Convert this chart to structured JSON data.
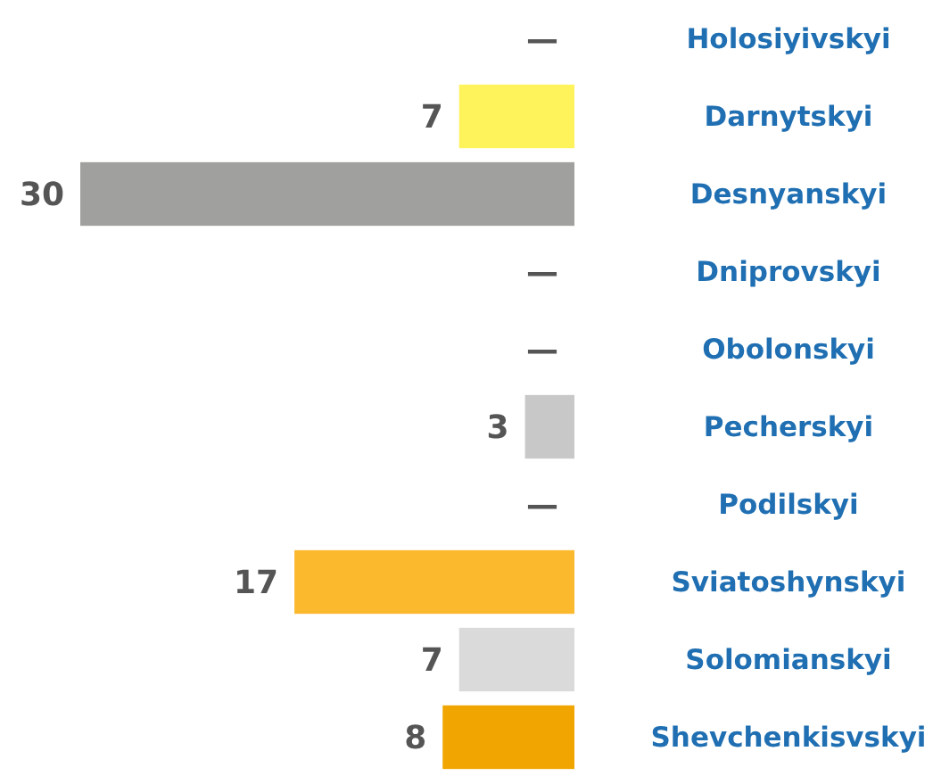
{
  "chart_data": {
    "type": "bar",
    "orientation": "horizontal",
    "categories": [
      "Holosiyivskyi",
      "Darnytskyi",
      "Desnyanskyi",
      "Dniprovskyi",
      "Obolonskyi",
      "Pecherskyi",
      "Podilskyi",
      "Sviatoshynskyi",
      "Solomianskyi",
      "Shevchenkisvskyi"
    ],
    "values": [
      0,
      7,
      30,
      0,
      0,
      3,
      0,
      17,
      7,
      8
    ],
    "value_labels": [
      "—",
      "7",
      "30",
      "—",
      "—",
      "3",
      "—",
      "17",
      "7",
      "8"
    ],
    "colors": [
      "#a0a09e",
      "#fff35c",
      "#a0a09e",
      "#a0a09e",
      "#a0a09e",
      "#c8c8c8",
      "#a0a09e",
      "#fbb92e",
      "#dadada",
      "#f0a500"
    ],
    "xlim": [
      30,
      0
    ],
    "tick_labels": "y"
  }
}
